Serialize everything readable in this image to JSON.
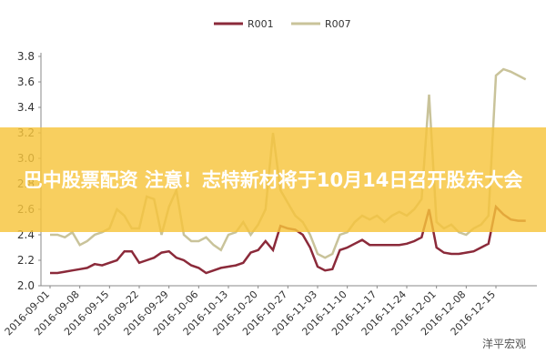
{
  "chart_data": {
    "type": "line",
    "legend": "top",
    "grid": false,
    "ylim": [
      2.0,
      3.8
    ],
    "yticks": [
      {
        "value": 2,
        "label": "2.0"
      },
      2.2,
      2.4,
      2.6,
      2.8,
      {
        "value": 3,
        "label": "3.0"
      },
      3.2,
      3.4,
      3.6,
      3.8
    ],
    "categories": [
      "2016-09-01",
      null,
      null,
      null,
      "2016-09-08",
      null,
      null,
      null,
      "2016-09-15",
      null,
      null,
      null,
      "2016-09-22",
      null,
      null,
      null,
      "2016-09-29",
      null,
      null,
      null,
      "2016-10-06",
      null,
      null,
      null,
      "2016-10-13",
      null,
      null,
      null,
      "2016-10-20",
      null,
      null,
      null,
      "2016-10-27",
      null,
      null,
      null,
      "2016-11-03",
      null,
      null,
      null,
      "2016-11-10",
      null,
      null,
      null,
      "2016-11-17",
      null,
      null,
      null,
      "2016-11-24",
      null,
      null,
      null,
      "2016-12-01",
      null,
      null,
      null,
      "2016-12-08",
      null,
      null,
      null,
      "2016-12-15",
      null,
      null,
      null,
      null
    ],
    "series": [
      {
        "name": "R001",
        "color": "#8b2a3a",
        "values": [
          2.1,
          2.1,
          2.11,
          2.12,
          2.13,
          2.14,
          2.17,
          2.16,
          2.18,
          2.2,
          2.27,
          2.27,
          2.18,
          2.2,
          2.22,
          2.26,
          2.27,
          2.22,
          2.2,
          2.16,
          2.14,
          2.1,
          2.12,
          2.14,
          2.15,
          2.16,
          2.18,
          2.26,
          2.28,
          2.35,
          2.28,
          2.47,
          2.45,
          2.44,
          2.4,
          2.3,
          2.15,
          2.12,
          2.13,
          2.28,
          2.3,
          2.33,
          2.36,
          2.32,
          2.32,
          2.32,
          2.32,
          2.32,
          2.33,
          2.35,
          2.38,
          2.6,
          2.3,
          2.26,
          2.25,
          2.25,
          2.26,
          2.27,
          2.3,
          2.33,
          2.62,
          2.56,
          2.52,
          2.51,
          2.51
        ]
      },
      {
        "name": "R007",
        "color": "#c9c39a",
        "values": [
          2.4,
          2.4,
          2.38,
          2.42,
          2.32,
          2.35,
          2.4,
          2.42,
          2.45,
          2.6,
          2.55,
          2.45,
          2.45,
          2.7,
          2.68,
          2.4,
          2.62,
          2.75,
          2.4,
          2.35,
          2.35,
          2.38,
          2.32,
          2.28,
          2.4,
          2.42,
          2.5,
          2.4,
          2.48,
          2.6,
          3.2,
          2.75,
          2.65,
          2.55,
          2.5,
          2.4,
          2.25,
          2.22,
          2.25,
          2.4,
          2.42,
          2.5,
          2.55,
          2.52,
          2.55,
          2.5,
          2.55,
          2.58,
          2.55,
          2.6,
          2.68,
          3.5,
          2.5,
          2.45,
          2.48,
          2.42,
          2.4,
          2.45,
          2.48,
          2.55,
          3.65,
          3.7,
          3.68,
          3.65,
          3.62
        ]
      }
    ]
  },
  "banner": {
    "text": "巴中股票配资 注意！志特新材将于10月14日召开股东大会"
  },
  "watermark": {
    "text": "洋平宏观"
  }
}
